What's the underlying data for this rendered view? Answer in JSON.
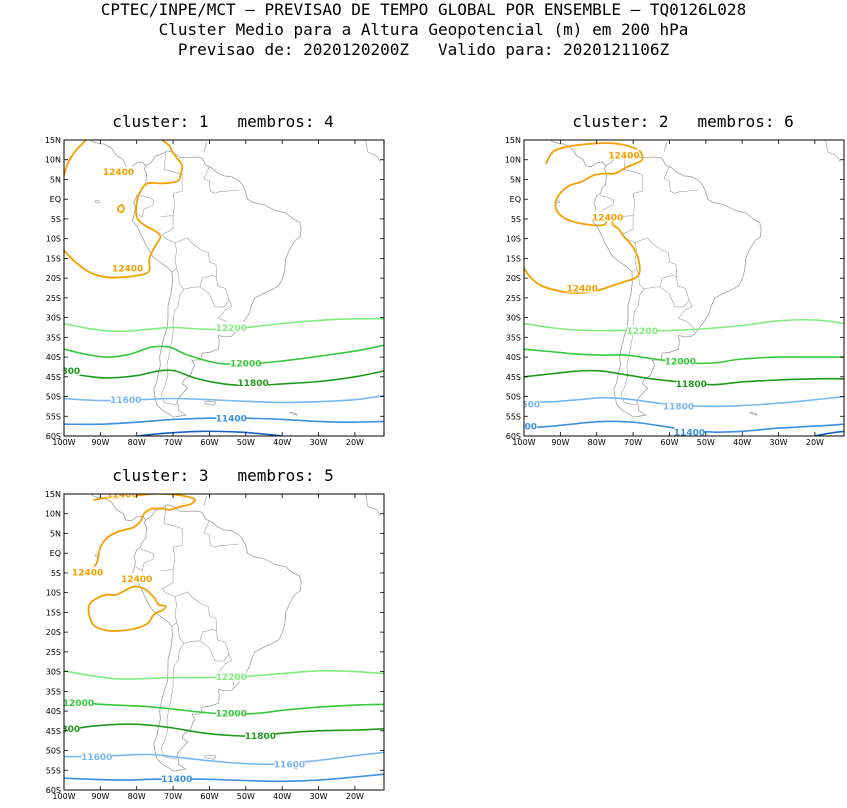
{
  "header": {
    "line1": "CPTEC/INPE/MCT — PREVISAO DE TEMPO GLOBAL POR ENSEMBLE — TQ0126L028",
    "line2": "Cluster Medio para a Altura Geopotencial (m) em 200 hPa",
    "line3": "Previsao de: 2020120200Z   Valido para: 2020121106Z"
  },
  "axes": {
    "lat_labels": [
      "15N",
      "10N",
      "5N",
      "EQ",
      "5S",
      "10S",
      "15S",
      "20S",
      "25S",
      "30S",
      "35S",
      "40S",
      "45S",
      "50S",
      "55S",
      "60S"
    ],
    "lon_labels": [
      "100W",
      "90W",
      "80W",
      "70W",
      "60W",
      "50W",
      "40W",
      "30W",
      "20W"
    ]
  },
  "colors": {
    "c12400": "#f5a000",
    "c12200": "#80ec80",
    "c12000": "#36c83a",
    "c11800": "#1c9a1c",
    "c11600": "#78b8f0",
    "c11400": "#3c90e0",
    "c11200": "#1a60c8",
    "coast": "#a0a0a0"
  },
  "panels": [
    {
      "title": "cluster: 1   membros: 4",
      "labels": {
        "l12400a": "12400",
        "l12400b": "12400",
        "l12200": "12200",
        "l12000": "12000",
        "l11800a": "11800",
        "l11800b": "1800",
        "l11600": "11600",
        "l11400": "11400"
      }
    },
    {
      "title": "cluster: 2   membros: 6",
      "labels": {
        "l12400a": "12400",
        "l12400b": "12400",
        "l12400c": "12400",
        "l12200": "12200",
        "l12000": "12000",
        "l11800": "11800",
        "l11600a": "1600",
        "l11600b": "11800",
        "l11400a": "400",
        "l11400b": "11400"
      }
    },
    {
      "title": "cluster: 3   membros: 5",
      "labels": {
        "l12400a": "12400",
        "l12400b": "12400",
        "l12400c": "12400",
        "l12200": "12200",
        "l12000a": "12000",
        "l12000b": "12000",
        "l11800a": "1800",
        "l11800b": "11800",
        "l11600a": "11600",
        "l11600b": "11600",
        "l11400": "11400"
      }
    }
  ]
}
